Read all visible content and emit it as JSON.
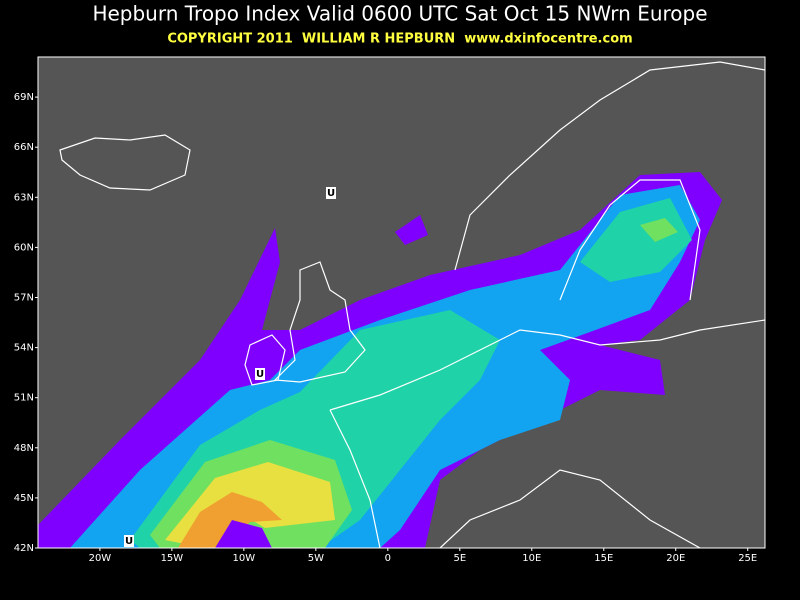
{
  "title": "Hepburn Tropo Index Valid 0600 UTC Sat Oct 15 NWrn Europe",
  "subtitle": "COPYRIGHT 2011  WILLIAM R HEPBURN  www.dxinfocentre.com",
  "map": {
    "lat_range": [
      42,
      71.4
    ],
    "lon_range": [
      -24.3,
      26.2
    ],
    "lat_ticks": [
      {
        "value": 69,
        "label": "69N"
      },
      {
        "value": 66,
        "label": "66N"
      },
      {
        "value": 63,
        "label": "63N"
      },
      {
        "value": 60,
        "label": "60N"
      },
      {
        "value": 57,
        "label": "57N"
      },
      {
        "value": 54,
        "label": "54N"
      },
      {
        "value": 51,
        "label": "51N"
      },
      {
        "value": 48,
        "label": "48N"
      },
      {
        "value": 45,
        "label": "45N"
      },
      {
        "value": 42,
        "label": "42N"
      }
    ],
    "lon_ticks": [
      {
        "value": -20,
        "label": "20W"
      },
      {
        "value": -15,
        "label": "15W"
      },
      {
        "value": -10,
        "label": "10W"
      },
      {
        "value": -5,
        "label": "5W"
      },
      0,
      {
        "value": 5,
        "label": "5E"
      },
      {
        "value": 10,
        "label": "10E"
      },
      {
        "value": 15,
        "label": "15E"
      },
      {
        "value": 20,
        "label": "20E"
      },
      {
        "value": 25,
        "label": "25E"
      }
    ],
    "markers": [
      "U",
      "U",
      "U"
    ]
  }
}
